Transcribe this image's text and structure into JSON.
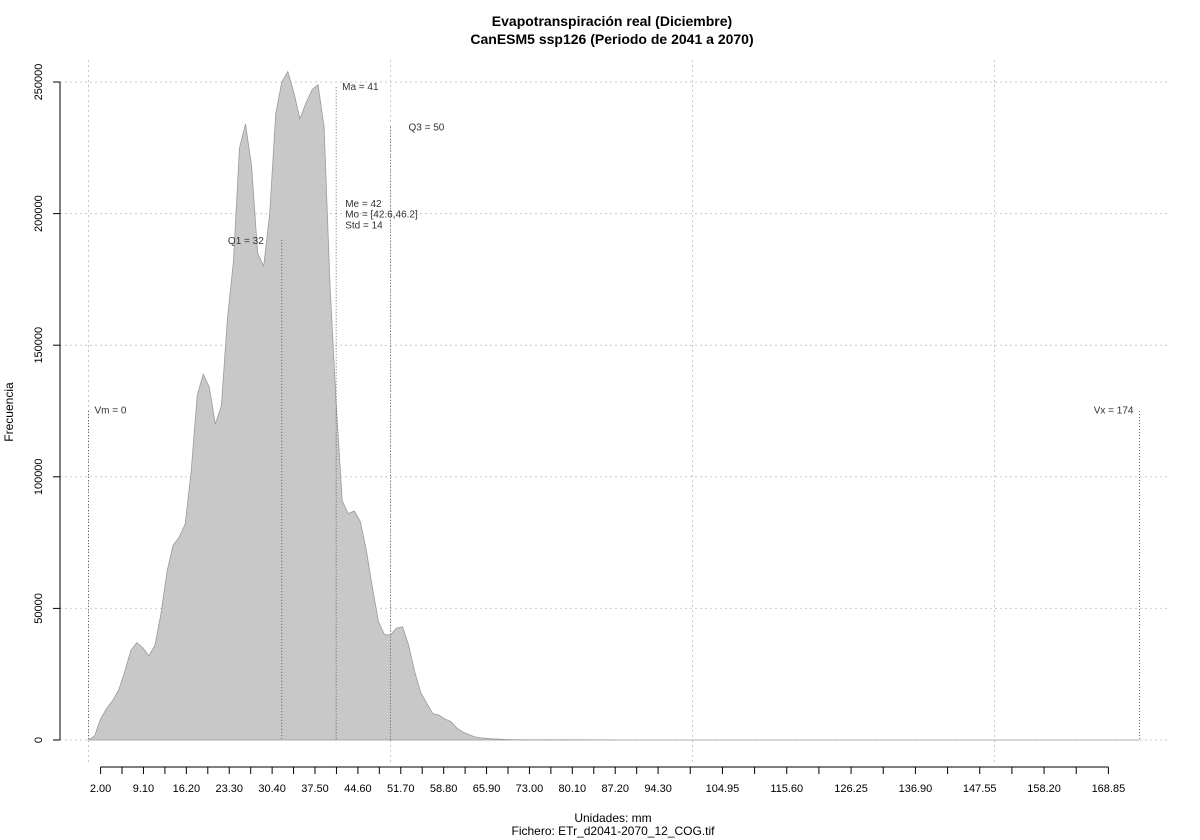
{
  "chart_data": {
    "type": "area",
    "title": "Evapotranspiración real (Diciembre)",
    "subtitle": "CanESM5 ssp126 (Periodo de 2041 a 2070)",
    "xlabel": "Unidades: mm",
    "ylabel": "Frecuencia",
    "footer": "Fichero: ETr_d2041-2070_12_COG.tif",
    "xlim": [
      0,
      174
    ],
    "ylim": [
      0,
      250000
    ],
    "fill_color": "#c8c8c8",
    "line_color": "#9a9a9a",
    "grid": true,
    "y_ticks": [
      {
        "value": 0,
        "label": "0"
      },
      {
        "value": 50000,
        "label": "50000"
      },
      {
        "value": 100000,
        "label": "100000"
      },
      {
        "value": 150000,
        "label": "150000"
      },
      {
        "value": 200000,
        "label": "200000"
      },
      {
        "value": 250000,
        "label": "250000"
      }
    ],
    "x_tick_labels": [
      {
        "value": 2.0,
        "label": "2.00"
      },
      {
        "value": 9.1,
        "label": "9.10"
      },
      {
        "value": 16.2,
        "label": "16.20"
      },
      {
        "value": 23.3,
        "label": "23.30"
      },
      {
        "value": 30.4,
        "label": "30.40"
      },
      {
        "value": 37.5,
        "label": "37.50"
      },
      {
        "value": 44.6,
        "label": "44.60"
      },
      {
        "value": 51.7,
        "label": "51.70"
      },
      {
        "value": 58.8,
        "label": "58.80"
      },
      {
        "value": 65.9,
        "label": "65.90"
      },
      {
        "value": 73.0,
        "label": "73.00"
      },
      {
        "value": 80.1,
        "label": "80.10"
      },
      {
        "value": 87.2,
        "label": "87.20"
      },
      {
        "value": 94.3,
        "label": "94.30"
      },
      {
        "value": 104.95,
        "label": "104.95"
      },
      {
        "value": 115.6,
        "label": "115.60"
      },
      {
        "value": 126.25,
        "label": "126.25"
      },
      {
        "value": 136.9,
        "label": "136.90"
      },
      {
        "value": 147.55,
        "label": "147.55"
      },
      {
        "value": 158.2,
        "label": "158.20"
      },
      {
        "value": 168.85,
        "label": "168.85"
      }
    ],
    "x_minor_ticks": [
      2,
      5.55,
      9.1,
      12.65,
      16.2,
      19.75,
      23.3,
      26.85,
      30.4,
      33.95,
      37.5,
      41.05,
      44.6,
      48.15,
      51.7,
      55.25,
      58.8,
      62.35,
      65.9,
      69.45,
      73,
      76.55,
      80.1,
      83.65,
      87.2,
      90.75,
      94.3,
      99.625,
      104.95,
      110.275,
      115.6,
      120.925,
      126.25,
      131.575,
      136.9,
      142.225,
      147.55,
      152.875,
      158.2,
      163.525,
      168.85
    ],
    "x_gridlines": [
      0,
      50,
      100,
      150
    ],
    "series": [
      {
        "x": [
          0,
          1,
          2,
          3,
          4,
          5,
          6,
          7,
          8,
          9,
          10,
          11,
          12,
          13,
          14,
          15,
          16,
          17,
          18,
          19,
          20,
          21,
          22,
          23,
          24,
          25,
          26,
          27,
          28,
          29,
          30,
          31,
          32,
          33,
          34,
          35,
          36,
          37,
          38,
          39,
          40,
          41,
          42,
          43,
          44,
          45,
          46,
          47,
          48,
          49,
          50,
          51,
          52,
          53,
          54,
          55,
          56,
          57,
          58,
          59,
          60,
          61,
          62,
          63,
          64,
          65,
          66,
          67,
          68,
          69,
          70,
          72,
          74,
          76,
          78,
          80,
          82,
          84,
          86,
          88,
          90,
          92,
          94,
          96,
          98,
          100,
          110,
          120,
          130,
          140,
          150,
          160,
          170,
          174
        ],
        "y": [
          0,
          1500,
          8000,
          12000,
          15000,
          19000,
          26000,
          34000,
          37000,
          35000,
          32000,
          36000,
          48000,
          64000,
          74000,
          77000,
          82000,
          102000,
          131000,
          139000,
          134000,
          120000,
          127000,
          160000,
          182000,
          225000,
          234000,
          218000,
          185000,
          180000,
          200000,
          238000,
          250000,
          254000,
          246000,
          236000,
          242000,
          247000,
          249000,
          233000,
          172000,
          128000,
          91000,
          86000,
          87000,
          83000,
          72000,
          58000,
          45000,
          40000,
          40000,
          42500,
          43000,
          36000,
          26000,
          18000,
          14000,
          10000,
          9500,
          8000,
          7000,
          4500,
          3000,
          2000,
          1200,
          800,
          600,
          400,
          300,
          200,
          150,
          100,
          100,
          100,
          100,
          100,
          100,
          50,
          50,
          0,
          0,
          0,
          0,
          0,
          0,
          0,
          0,
          0,
          0,
          0,
          0,
          0,
          0,
          0
        ]
      }
    ],
    "annotations": [
      {
        "label": "Vm = 0",
        "x": 0,
        "line_top": 125000,
        "text_y": 124000,
        "anchor": "start",
        "dx": 1
      },
      {
        "label": "Q1 = 32",
        "x": 32,
        "line_top": 190000,
        "text_y": 188500,
        "anchor": "end",
        "dx": -3
      },
      {
        "label": "Ma = 41",
        "x": 41,
        "line_top": 248000,
        "text_y": 247000,
        "anchor": "start",
        "dx": 1
      },
      {
        "label": "Q3 = 50",
        "x": 50,
        "line_top": 233000,
        "text_y": 231500,
        "anchor": "start",
        "dx": 3
      },
      {
        "label": "Vx = 174",
        "x": 174,
        "line_top": 125000,
        "text_y": 124000,
        "anchor": "end",
        "dx": -1
      }
    ],
    "stats_x": 42.5,
    "stats": [
      {
        "label": "Me = 42",
        "y": 202500
      },
      {
        "label": "Mo = [42.6,46.2]",
        "y": 198500
      },
      {
        "label": "Std = 14",
        "y": 194300
      }
    ]
  }
}
